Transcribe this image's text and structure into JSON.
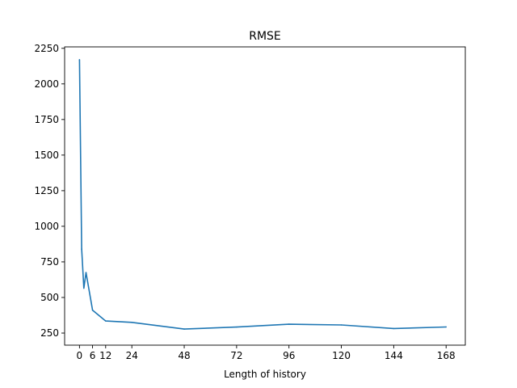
{
  "chart_data": {
    "type": "line",
    "title": "RMSE",
    "xlabel": "Length of history",
    "ylabel": "",
    "xlim": [
      -6.8,
      176.8
    ],
    "ylim": [
      165,
      2260
    ],
    "xticks": [
      0,
      6,
      12,
      24,
      48,
      72,
      96,
      120,
      144,
      168
    ],
    "yticks": [
      250,
      500,
      750,
      1000,
      1250,
      1500,
      1750,
      2000,
      2250
    ],
    "grid": false,
    "series": [
      {
        "color": "#1f77b4",
        "x": [
          0,
          1,
          2,
          3,
          6,
          12,
          24,
          48,
          72,
          96,
          120,
          144,
          168
        ],
        "y": [
          2170,
          840,
          565,
          675,
          410,
          335,
          325,
          278,
          292,
          312,
          307,
          282,
          293
        ]
      }
    ]
  }
}
